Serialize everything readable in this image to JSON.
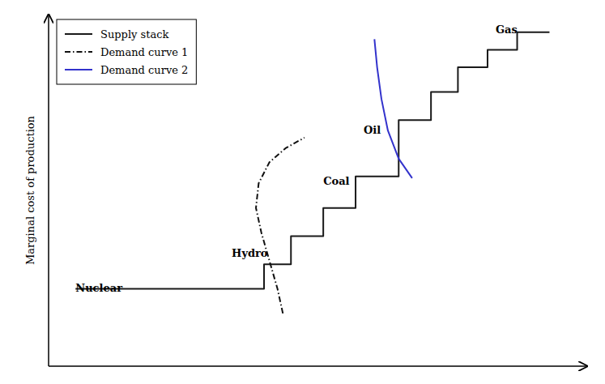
{
  "chart_data": {
    "type": "line",
    "y_label": "Marginal cost of production",
    "xlim": [
      0,
      10
    ],
    "ylim": [
      0,
      10
    ],
    "tick_labels": false,
    "legend": "upper left",
    "series": [
      {
        "name": "Supply stack",
        "color": "#1a1a1a",
        "line_style": "solid",
        "x": [
          0.5,
          4.0,
          4.0,
          4.5,
          4.5,
          5.1,
          5.1,
          5.7,
          5.7,
          6.5,
          6.5,
          7.1,
          7.1,
          7.6,
          7.6,
          8.15,
          8.15,
          8.7,
          8.7,
          9.3
        ],
        "values": [
          2.2,
          2.2,
          2.9,
          2.9,
          3.7,
          3.7,
          4.5,
          4.5,
          5.4,
          5.4,
          7.0,
          7.0,
          7.8,
          7.8,
          8.5,
          8.5,
          9.0,
          9.0,
          9.5,
          9.5
        ]
      },
      {
        "name": "Demand curve 1",
        "color": "#111111",
        "line_style": "dashdot",
        "x": [
          4.35,
          4.25,
          4.1,
          3.95,
          3.85,
          3.9,
          4.1,
          4.4,
          4.75
        ],
        "values": [
          1.5,
          2.2,
          3.0,
          3.8,
          4.5,
          5.2,
          5.8,
          6.2,
          6.5
        ]
      },
      {
        "name": "Demand curve 2",
        "color": "#3333cc",
        "line_style": "solid",
        "x": [
          6.05,
          6.1,
          6.18,
          6.3,
          6.5,
          6.75
        ],
        "values": [
          9.3,
          8.5,
          7.6,
          6.7,
          5.9,
          5.35
        ]
      }
    ],
    "annotations": [
      {
        "text": "Nuclear",
        "x": 0.5,
        "y": 2.05
      },
      {
        "text": "Hydro",
        "x": 3.4,
        "y": 3.05
      },
      {
        "text": "Coal",
        "x": 5.1,
        "y": 5.1
      },
      {
        "text": "Oil",
        "x": 5.85,
        "y": 6.55
      },
      {
        "text": "Gas",
        "x": 8.3,
        "y": 9.4
      }
    ]
  }
}
